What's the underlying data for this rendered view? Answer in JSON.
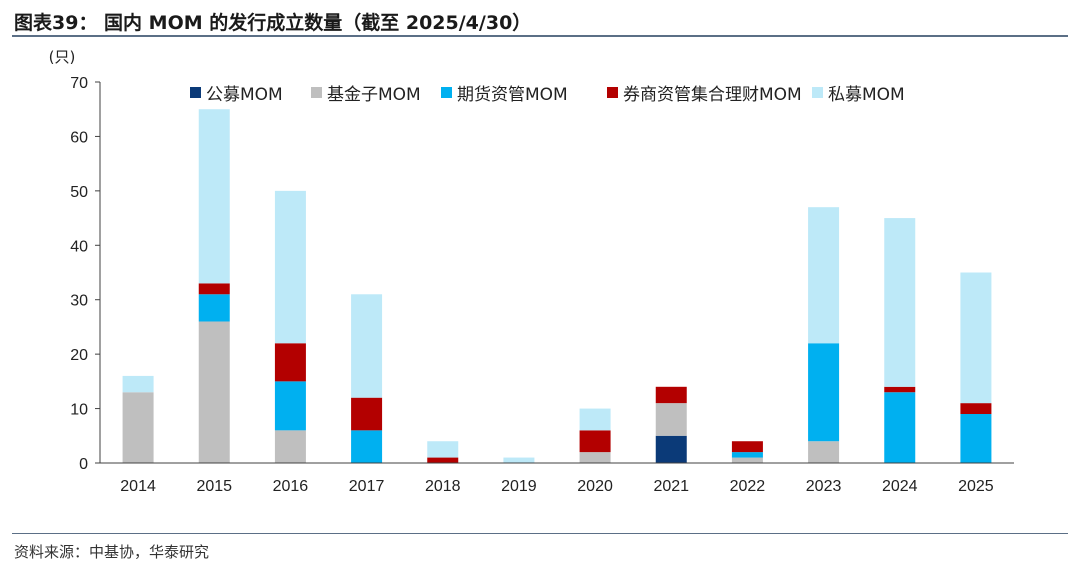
{
  "header": {
    "title": "图表39： 国内 MOM 的发行成立数量（截至 2025/4/30）"
  },
  "footer": {
    "source": "资料来源：中基协，华泰研究"
  },
  "chart_data": {
    "type": "bar",
    "stacked": true,
    "unit_label": "(只)",
    "categories": [
      "2014",
      "2015",
      "2016",
      "2017",
      "2018",
      "2019",
      "2020",
      "2021",
      "2022",
      "2023",
      "2024",
      "2025"
    ],
    "ylim": [
      0,
      70
    ],
    "yticks": [
      0,
      10,
      20,
      30,
      40,
      50,
      60,
      70
    ],
    "legend_position": "top",
    "series": [
      {
        "name": "公募MOM",
        "color": "#0b3a78",
        "values": [
          0,
          0,
          0,
          0,
          0,
          0,
          0,
          5,
          0,
          0,
          0,
          0
        ]
      },
      {
        "name": "基金子MOM",
        "color": "#bfbfbf",
        "values": [
          13,
          26,
          6,
          0,
          0,
          0,
          2,
          6,
          1,
          4,
          0,
          0
        ]
      },
      {
        "name": "期货资管MOM",
        "color": "#00b0f0",
        "values": [
          0,
          5,
          9,
          6,
          0,
          0,
          0,
          0,
          1,
          18,
          13,
          9
        ]
      },
      {
        "name": "券商资管集合理财MOM",
        "color": "#b30000",
        "values": [
          0,
          2,
          7,
          6,
          1,
          0,
          4,
          3,
          2,
          0,
          1,
          2
        ]
      },
      {
        "name": "私募MOM",
        "color": "#bde9f8",
        "values": [
          3,
          32,
          28,
          19,
          3,
          1,
          4,
          0,
          0,
          25,
          31,
          24
        ]
      }
    ]
  }
}
